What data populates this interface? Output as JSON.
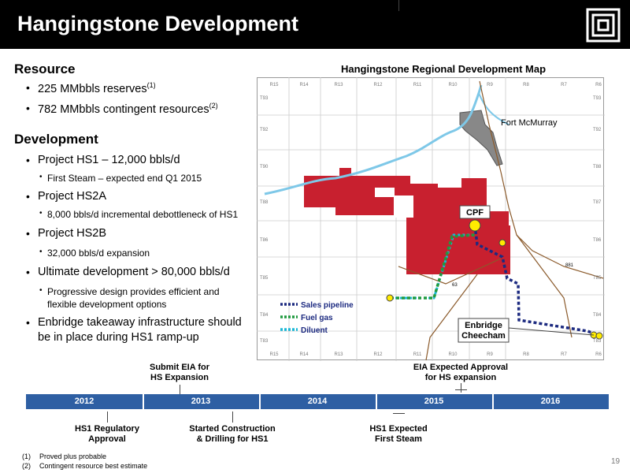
{
  "header": {
    "title": "Hangingstone Development"
  },
  "left": {
    "sections": [
      {
        "heading": "Resource",
        "items": [
          {
            "text": "225 MMbbls reserves",
            "sup": "(1)"
          },
          {
            "text": "782 MMbbls contingent resources",
            "sup": "(2)"
          }
        ]
      },
      {
        "heading": "Development",
        "items": [
          {
            "text": "Project HS1 – 12,000 bbls/d",
            "sub": [
              "First Steam – expected end Q1 2015"
            ]
          },
          {
            "text": "Project HS2A",
            "sub": [
              "8,000 bbls/d incremental debottleneck of HS1"
            ]
          },
          {
            "text": "Project HS2B",
            "sub": [
              "32,000 bbls/d expansion"
            ]
          },
          {
            "text": "Ultimate development > 80,000 bbls/d",
            "sub": [
              "Progressive design provides efficient and",
              "flexible development options"
            ]
          },
          {
            "text": "Enbridge takeaway infrastructure should",
            "text2": "be in place during HS1 ramp-up"
          }
        ]
      }
    ]
  },
  "map": {
    "title": "Hangingstone Regional Development Map",
    "ranges": [
      "R15",
      "R14",
      "R13",
      "R12",
      "R11",
      "R10",
      "R9",
      "R8",
      "R7",
      "R6"
    ],
    "townships_left": [
      "T93",
      "T92",
      "T90",
      "T88",
      "T86",
      "T85",
      "T84",
      "T83"
    ],
    "townships_right": [
      "T93",
      "T92",
      "T88",
      "T87",
      "T86",
      "T85",
      "T84",
      "T83"
    ],
    "fort": "Fort McMurray",
    "cpf": "CPF",
    "enbridge": [
      "Enbridge",
      "Cheecham"
    ],
    "roads": [
      "63",
      "881"
    ],
    "legend": [
      "Sales pipeline",
      "Fuel gas",
      "Diluent"
    ]
  },
  "timeline": {
    "years": [
      "2012",
      "2013",
      "2014",
      "2015",
      "2016"
    ],
    "above": [
      [
        "Submit EIA for",
        "HS Expansion"
      ],
      [
        "EIA Expected  Approval",
        "for HS expansion"
      ]
    ],
    "below": [
      [
        "HS1 Regulatory",
        "Approval"
      ],
      [
        "Started Construction",
        "& Drilling for HS1"
      ],
      [
        "HS1 Expected",
        "First Steam"
      ]
    ]
  },
  "footnotes": [
    {
      "num": "(1)",
      "text": "Proved plus probable"
    },
    {
      "num": "(2)",
      "text": "Contingent resource best estimate"
    }
  ],
  "page": "19"
}
